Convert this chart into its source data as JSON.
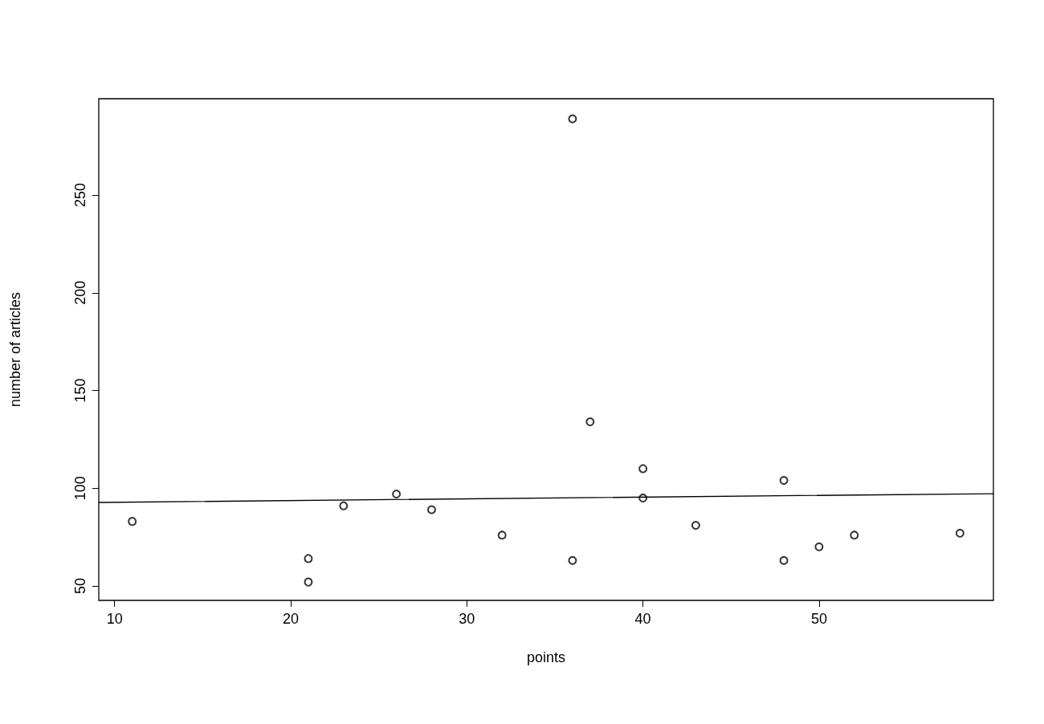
{
  "chart_data": {
    "type": "scatter",
    "xlabel": "points",
    "ylabel": "number of articles",
    "xlim": [
      9.1,
      59.9
    ],
    "ylim": [
      42.6,
      299.3
    ],
    "xticks": [
      10,
      20,
      30,
      40,
      50
    ],
    "yticks": [
      50,
      100,
      150,
      200,
      250
    ],
    "grid": false,
    "marker": "circle",
    "series": [
      {
        "type": "scatter",
        "color": "#000000",
        "x": [
          11,
          21,
          21,
          23,
          26,
          28,
          32,
          36,
          36,
          37,
          40,
          40,
          43,
          48,
          48,
          50,
          52,
          58
        ],
        "values": [
          83,
          64,
          52,
          91,
          97,
          89,
          76,
          289,
          63,
          134,
          110,
          95,
          81,
          104,
          63,
          70,
          76,
          77
        ]
      },
      {
        "type": "line",
        "color": "#000000",
        "line_style": "solid",
        "marker": "none",
        "x": [
          9.1,
          59.9
        ],
        "values": [
          92.7,
          97.2
        ]
      }
    ]
  }
}
